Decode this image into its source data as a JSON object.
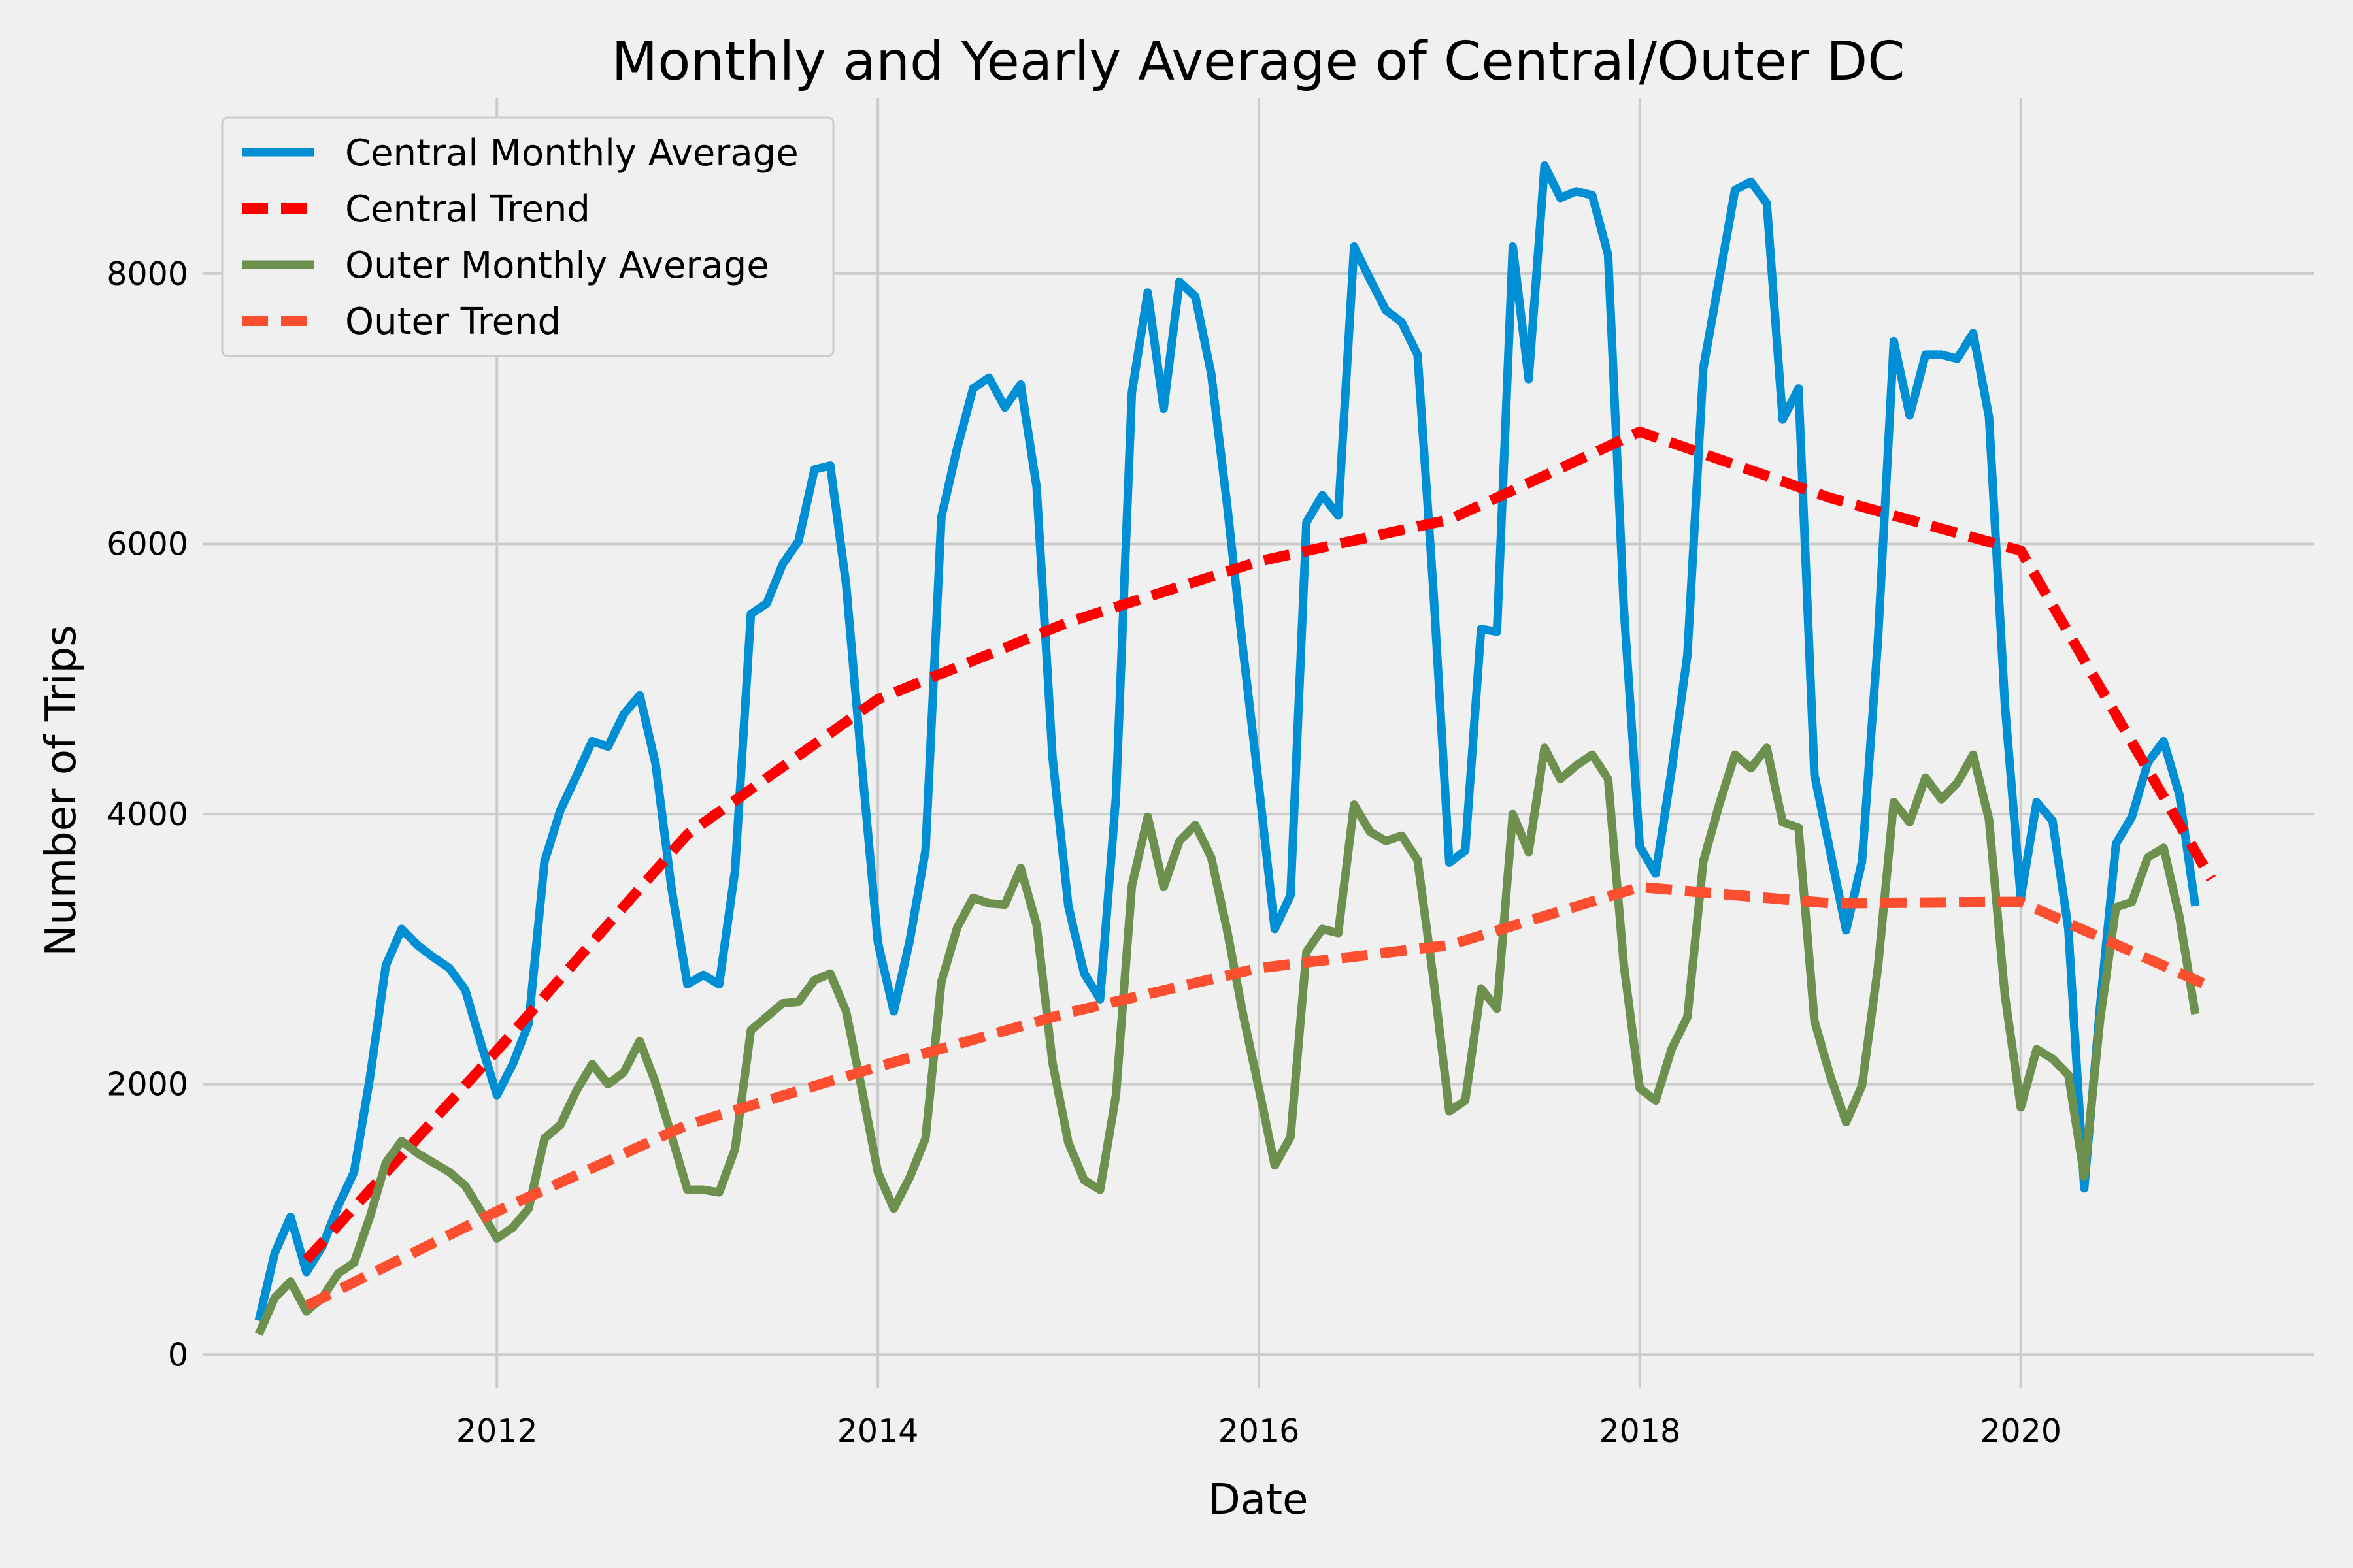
{
  "chart_data": {
    "type": "line",
    "title": "Monthly and Yearly Average of Central/Outer DC",
    "xlabel": "Date",
    "ylabel": "Number of Trips",
    "xlim": [
      "2010-06-15",
      "2021-07-15"
    ],
    "ylim": [
      -250,
      9300
    ],
    "x_ticks": [
      "2012-01-01",
      "2014-01-01",
      "2016-01-01",
      "2018-01-01",
      "2020-01-01"
    ],
    "x_tick_labels": [
      "2012",
      "2014",
      "2016",
      "2018",
      "2020"
    ],
    "y_ticks": [
      0,
      2000,
      4000,
      6000,
      8000
    ],
    "y_tick_labels": [
      "0",
      "2000",
      "4000",
      "6000",
      "8000"
    ],
    "grid": true,
    "legend_position": "upper-left",
    "colors": {
      "background": "#f0f0f0",
      "grid": "#cbcbcb",
      "central_monthly": "#008fd5",
      "central_trend": "#ff0000",
      "outer_monthly": "#6d904f",
      "outer_trend": "#fc4f30"
    },
    "series": [
      {
        "name": "Central Monthly Average",
        "key": "central_monthly",
        "style": "solid",
        "start": "2010-10",
        "values": [
          250,
          750,
          1020,
          610,
          800,
          1100,
          1350,
          2050,
          2880,
          3150,
          3030,
          2940,
          2860,
          2700,
          2300,
          1920,
          2150,
          2450,
          3650,
          4030,
          4280,
          4540,
          4500,
          4740,
          4880,
          4370,
          3450,
          2740,
          2810,
          2740,
          3580,
          5480,
          5560,
          5850,
          6020,
          6550,
          6580,
          5700,
          4350,
          3050,
          2540,
          3060,
          3730,
          6200,
          6710,
          7150,
          7230,
          7010,
          7180,
          6420,
          4420,
          3320,
          2820,
          2630,
          4130,
          7120,
          7860,
          7000,
          7940,
          7830,
          7260,
          6290,
          5220,
          4210,
          3150,
          3400,
          6160,
          6360,
          6210,
          8200,
          7960,
          7730,
          7640,
          7400,
          5650,
          3640,
          3730,
          5370,
          5350,
          8200,
          7220,
          8800,
          8560,
          8610,
          8580,
          8140,
          5520,
          3760,
          3560,
          4320,
          5180,
          7300,
          7960,
          8620,
          8680,
          8520,
          6920,
          7150,
          4290,
          3720,
          3140,
          3650,
          5280,
          7500,
          6950,
          7400,
          7400,
          7370,
          7560,
          6940,
          4810,
          3380,
          4090,
          3950,
          3150,
          1230,
          2580,
          3780,
          3980,
          4380,
          4540,
          4140,
          3320
        ]
      },
      {
        "name": "Central Trend",
        "key": "central_trend",
        "style": "dashed",
        "points": [
          [
            "2011-01",
            700
          ],
          [
            "2012-01",
            2250
          ],
          [
            "2013-01",
            3850
          ],
          [
            "2014-01",
            4850
          ],
          [
            "2015-01",
            5420
          ],
          [
            "2016-01",
            5870
          ],
          [
            "2017-01",
            6180
          ],
          [
            "2018-01",
            6830
          ],
          [
            "2019-01",
            6340
          ],
          [
            "2020-01",
            5950
          ],
          [
            "2021-01",
            3520
          ]
        ]
      },
      {
        "name": "Outer Monthly Average",
        "key": "outer_monthly",
        "style": "solid",
        "start": "2010-10",
        "values": [
          150,
          420,
          540,
          320,
          420,
          600,
          680,
          1020,
          1420,
          1580,
          1490,
          1420,
          1350,
          1250,
          1060,
          860,
          940,
          1080,
          1600,
          1700,
          1950,
          2150,
          2000,
          2090,
          2320,
          2010,
          1620,
          1220,
          1220,
          1200,
          1520,
          2400,
          2500,
          2600,
          2610,
          2770,
          2820,
          2540,
          1960,
          1350,
          1080,
          1310,
          1600,
          2760,
          3160,
          3380,
          3340,
          3330,
          3600,
          3180,
          2160,
          1570,
          1290,
          1220,
          1920,
          3470,
          3980,
          3460,
          3800,
          3920,
          3680,
          3140,
          2520,
          1970,
          1400,
          1610,
          2980,
          3150,
          3120,
          4070,
          3870,
          3800,
          3840,
          3660,
          2780,
          1800,
          1880,
          2710,
          2560,
          4000,
          3720,
          4490,
          4260,
          4360,
          4440,
          4260,
          2880,
          1970,
          1880,
          2260,
          2500,
          3650,
          4070,
          4440,
          4340,
          4490,
          3940,
          3900,
          2470,
          2060,
          1720,
          1990,
          2860,
          4090,
          3940,
          4270,
          4110,
          4230,
          4440,
          3960,
          2660,
          1830,
          2260,
          2190,
          2070,
          1320,
          2480,
          3310,
          3350,
          3680,
          3750,
          3240,
          2520
        ]
      },
      {
        "name": "Outer Trend",
        "key": "outer_trend",
        "style": "dashed",
        "points": [
          [
            "2011-01",
            360
          ],
          [
            "2012-01",
            1060
          ],
          [
            "2013-01",
            1700
          ],
          [
            "2014-01",
            2130
          ],
          [
            "2015-01",
            2530
          ],
          [
            "2016-01",
            2860
          ],
          [
            "2017-01",
            3030
          ],
          [
            "2018-01",
            3460
          ],
          [
            "2019-01",
            3340
          ],
          [
            "2020-01",
            3350
          ],
          [
            "2021-01",
            2720
          ]
        ]
      }
    ]
  }
}
